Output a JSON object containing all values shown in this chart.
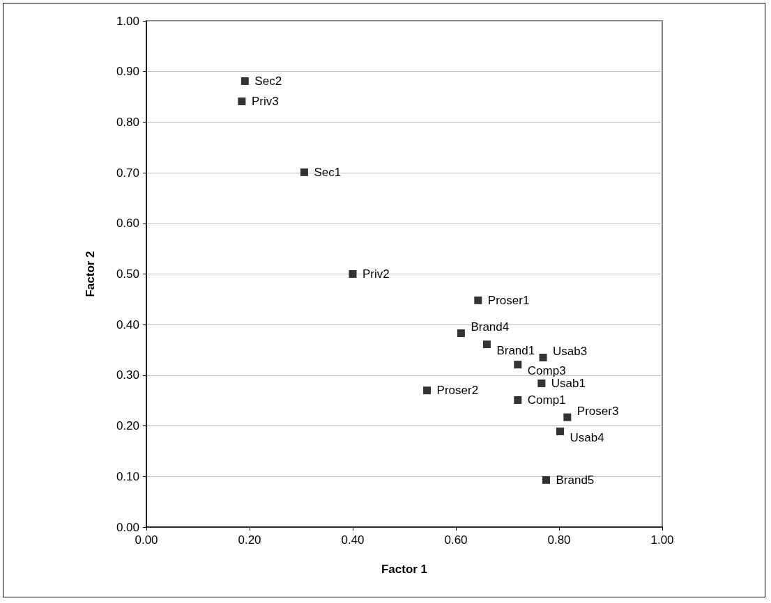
{
  "chart_data": {
    "type": "scatter",
    "xlabel": "Factor 1",
    "ylabel": "Factor 2",
    "x": [
      0.191,
      0.185,
      0.306,
      0.4,
      0.643,
      0.61,
      0.66,
      0.769,
      0.72,
      0.766,
      0.544,
      0.72,
      0.816,
      0.802,
      0.775
    ],
    "values": [
      0.881,
      0.841,
      0.701,
      0.5,
      0.448,
      0.383,
      0.361,
      0.335,
      0.321,
      0.284,
      0.27,
      0.251,
      0.217,
      0.189,
      0.093
    ],
    "color": "#000000",
    "marker": "square",
    "grid": "y",
    "xlim": [
      0,
      1
    ],
    "ylim": [
      0,
      1
    ],
    "xticks": [
      {
        "value": 0,
        "label": "0.00"
      },
      {
        "value": 0.2,
        "label": "0.20"
      },
      {
        "value": 0.4,
        "label": "0.40"
      },
      {
        "value": 0.6,
        "label": "0.60"
      },
      {
        "value": 0.8,
        "label": "0.80"
      },
      {
        "value": 1,
        "label": "1.00"
      }
    ],
    "yticks": [
      {
        "value": 0,
        "label": "0.00"
      },
      {
        "value": 0.1,
        "label": "0.10"
      },
      {
        "value": 0.2,
        "label": "0.20"
      },
      {
        "value": 0.3,
        "label": "0.30"
      },
      {
        "value": 0.4,
        "label": "0.40"
      },
      {
        "value": 0.5,
        "label": "0.50"
      },
      {
        "value": 0.6,
        "label": "0.60"
      },
      {
        "value": 0.7,
        "label": "0.70"
      },
      {
        "value": 0.8,
        "label": "0.80"
      },
      {
        "value": 0.9,
        "label": "0.90"
      },
      {
        "value": 1,
        "label": "1.00"
      }
    ],
    "annotations": [
      {
        "text": "Sec2",
        "x": 0.191,
        "y": 0.881
      },
      {
        "text": "Priv3",
        "x": 0.185,
        "y": 0.841
      },
      {
        "text": "Sec1",
        "x": 0.306,
        "y": 0.701
      },
      {
        "text": "Priv2",
        "x": 0.4,
        "y": 0.5
      },
      {
        "text": "Proser1",
        "x": 0.643,
        "y": 0.448
      },
      {
        "text": "Brand4",
        "x": 0.61,
        "y": 0.383
      },
      {
        "text": "Brand1",
        "x": 0.66,
        "y": 0.361
      },
      {
        "text": "Usab3",
        "x": 0.769,
        "y": 0.335
      },
      {
        "text": "Comp3",
        "x": 0.72,
        "y": 0.321
      },
      {
        "text": "Usab1",
        "x": 0.766,
        "y": 0.284
      },
      {
        "text": "Proser2",
        "x": 0.544,
        "y": 0.27
      },
      {
        "text": "Comp1",
        "x": 0.72,
        "y": 0.251
      },
      {
        "text": "Proser3",
        "x": 0.816,
        "y": 0.217
      },
      {
        "text": "Usab4",
        "x": 0.802,
        "y": 0.189
      },
      {
        "text": "Brand5",
        "x": 0.775,
        "y": 0.093
      }
    ]
  }
}
